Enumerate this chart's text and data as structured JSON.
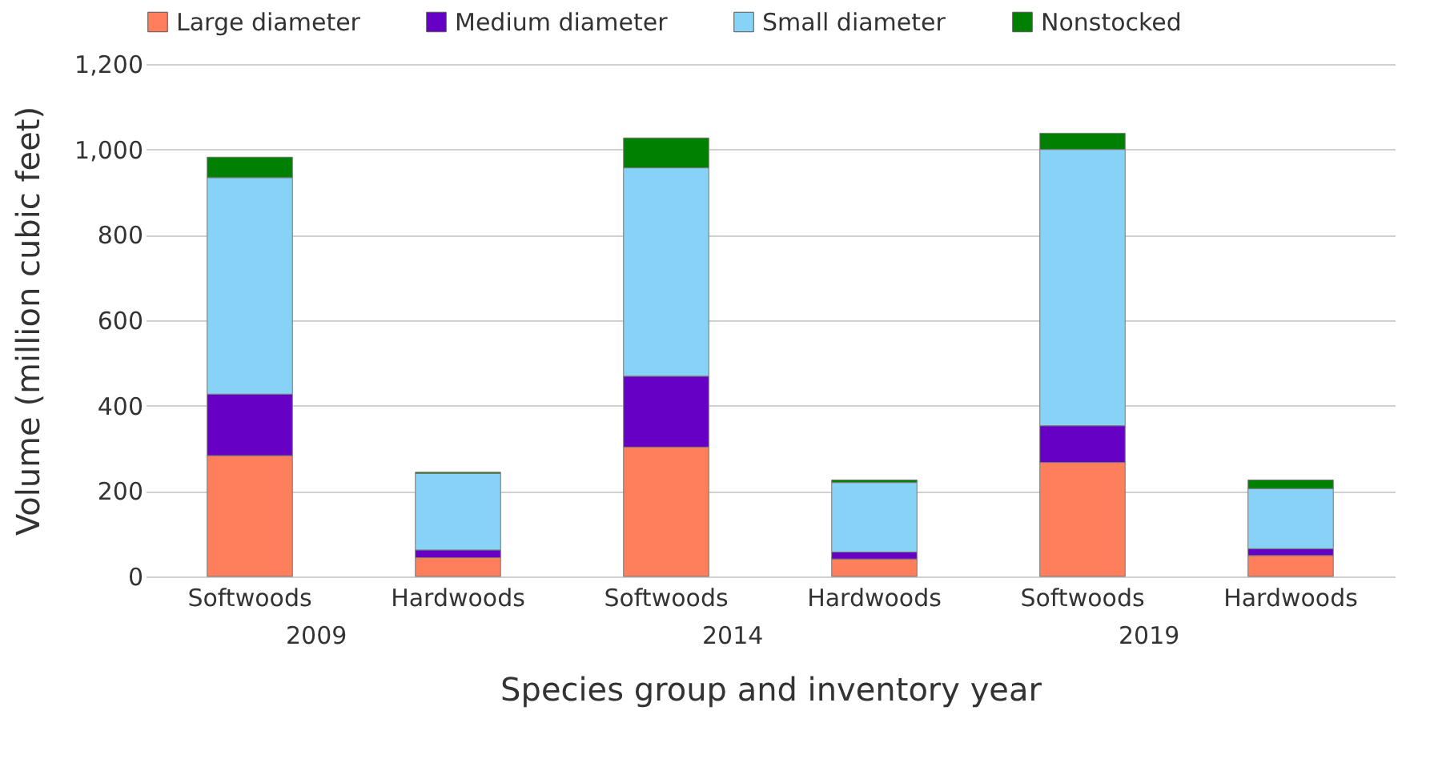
{
  "chart_data": {
    "type": "bar",
    "stacked": true,
    "xlabel": "Species group and inventory year",
    "ylabel": "Volume (million cubic feet)",
    "categories": [
      "Softwoods",
      "Hardwoods",
      "Softwoods",
      "Hardwoods",
      "Softwoods",
      "Hardwoods"
    ],
    "annotations": [
      "2009",
      "2014",
      "2019"
    ],
    "series": [
      {
        "name": "Large diameter",
        "color": "#ff7f5c",
        "values": [
          283,
          44,
          303,
          41,
          267,
          49
        ]
      },
      {
        "name": "Medium diameter",
        "color": "#6600c4",
        "values": [
          144,
          18,
          166,
          16,
          86,
          16
        ]
      },
      {
        "name": "Small diameter",
        "color": "#87d3f8",
        "values": [
          507,
          179,
          488,
          163,
          647,
          141
        ]
      },
      {
        "name": "Nonstocked",
        "color": "#008000",
        "values": [
          48,
          3,
          70,
          6,
          38,
          20
        ]
      }
    ],
    "ylim": [
      0,
      1200
    ],
    "yticks": [
      0,
      200,
      400,
      600,
      800,
      {
        "value": 1000,
        "label": "1,000"
      },
      {
        "value": 1200,
        "label": "1,200"
      }
    ],
    "grid": true,
    "legend": "top"
  }
}
